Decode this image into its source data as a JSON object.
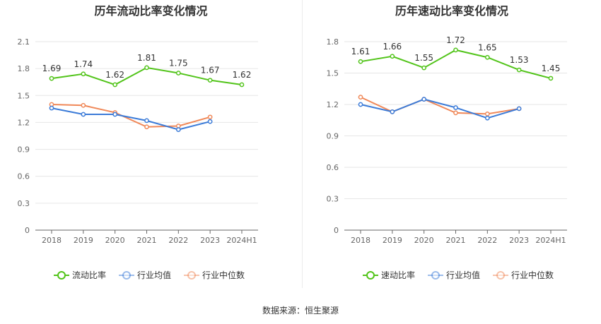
{
  "source": "数据来源：恒生聚源",
  "chart_data": [
    {
      "type": "line",
      "title": "历年流动比率变化情况",
      "categories": [
        "2018",
        "2019",
        "2020",
        "2021",
        "2022",
        "2023",
        "2024H1"
      ],
      "yticks": [
        "0",
        "0.3",
        "0.6",
        "0.9",
        "1.2",
        "1.5",
        "1.8",
        "2.1"
      ],
      "ylim": [
        0,
        2.1
      ],
      "series": [
        {
          "name": "流动比率",
          "color": "#52c41a",
          "values": [
            1.69,
            1.74,
            1.62,
            1.81,
            1.75,
            1.67,
            1.62
          ],
          "labels": [
            "1.69",
            "1.74",
            "1.62",
            "1.81",
            "1.75",
            "1.67",
            "1.62"
          ]
        },
        {
          "name": "行业均值",
          "color": "#3b7bd8",
          "values": [
            1.36,
            1.29,
            1.29,
            1.22,
            1.12,
            1.21,
            null
          ]
        },
        {
          "name": "行业中位数",
          "color": "#f08858",
          "values": [
            1.4,
            1.39,
            1.31,
            1.15,
            1.16,
            1.26,
            null
          ]
        }
      ],
      "legend_position": "bottom",
      "grid": true
    },
    {
      "type": "line",
      "title": "历年速动比率变化情况",
      "categories": [
        "2018",
        "2019",
        "2020",
        "2021",
        "2022",
        "2023",
        "2024H1"
      ],
      "yticks": [
        "0",
        "0.3",
        "0.6",
        "0.9",
        "1.2",
        "1.5",
        "1.8"
      ],
      "ylim": [
        0,
        1.8
      ],
      "series": [
        {
          "name": "速动比率",
          "color": "#52c41a",
          "values": [
            1.61,
            1.66,
            1.55,
            1.72,
            1.65,
            1.53,
            1.45
          ],
          "labels": [
            "1.61",
            "1.66",
            "1.55",
            "1.72",
            "1.65",
            "1.53",
            "1.45"
          ]
        },
        {
          "name": "行业均值",
          "color": "#3b7bd8",
          "values": [
            1.2,
            1.13,
            1.25,
            1.17,
            1.07,
            1.16,
            null
          ]
        },
        {
          "name": "行业中位数",
          "color": "#f08858",
          "values": [
            1.27,
            1.13,
            1.25,
            1.12,
            1.11,
            1.16,
            null
          ]
        }
      ],
      "legend_position": "bottom",
      "grid": true
    }
  ]
}
